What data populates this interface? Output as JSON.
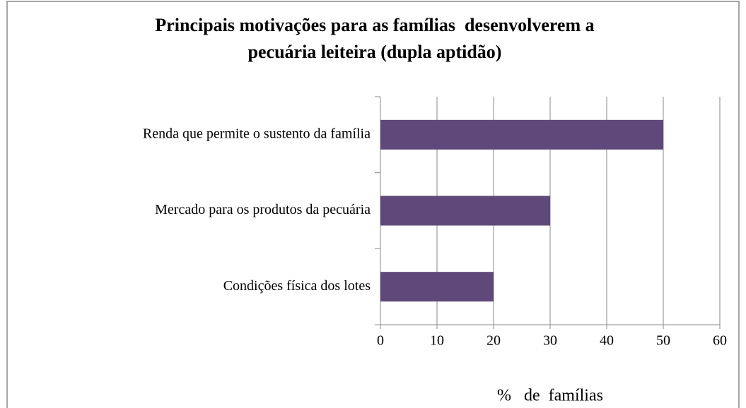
{
  "chart_data": {
    "type": "hbar",
    "title": [
      "Principais motivações para as famílias  desenvolverem a",
      "pecuária leiteira (dupla aptidão)"
    ],
    "categories": [
      "Renda que permite o sustento da família",
      "Mercado para os produtos da pecuária",
      "Condições física dos lotes"
    ],
    "values": [
      50,
      30,
      20
    ],
    "color": "#5f497a",
    "xlabel": "%   de  famílias",
    "xlim": [
      0,
      60
    ],
    "xticks": [
      0,
      10,
      20,
      30,
      40,
      50,
      60
    ],
    "grid": true
  }
}
